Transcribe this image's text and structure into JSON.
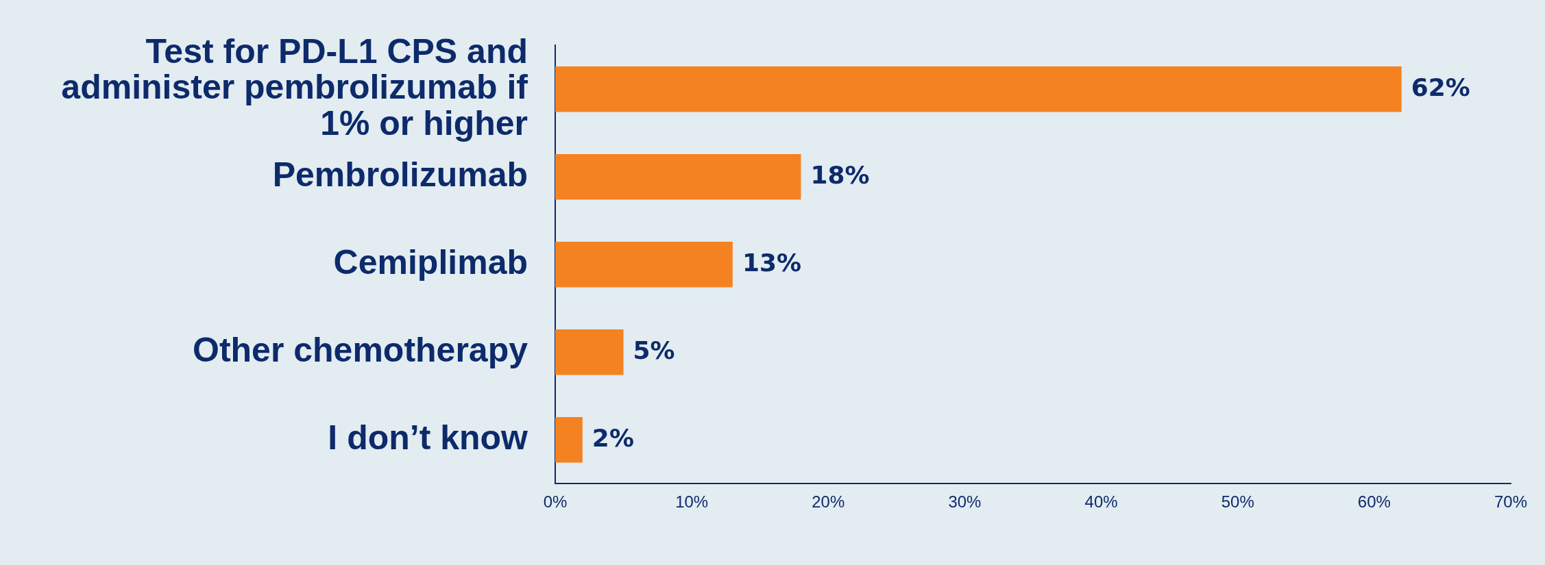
{
  "chart_data": {
    "type": "bar",
    "orientation": "horizontal",
    "categories": [
      "Test for PD-L1 CPS and administer pembrolizumab if 1% or higher",
      "Pembrolizumab",
      "Cemiplimab",
      "Other chemotherapy",
      "I don’t know"
    ],
    "values": [
      62,
      18,
      13,
      5,
      2
    ],
    "value_labels": [
      "62%",
      "18%",
      "13%",
      "5%",
      "2%"
    ],
    "color": "#f58220",
    "xlim": [
      0,
      70
    ],
    "xticks": [
      {
        "value": 0,
        "label": "0%"
      },
      {
        "value": 10,
        "label": "10%"
      },
      {
        "value": 20,
        "label": "20%"
      },
      {
        "value": 30,
        "label": "30%"
      },
      {
        "value": 40,
        "label": "40%"
      },
      {
        "value": 50,
        "label": "50%"
      },
      {
        "value": 60,
        "label": "60%"
      },
      {
        "value": 70,
        "label": "70%"
      }
    ],
    "grid": false,
    "legend": false
  }
}
